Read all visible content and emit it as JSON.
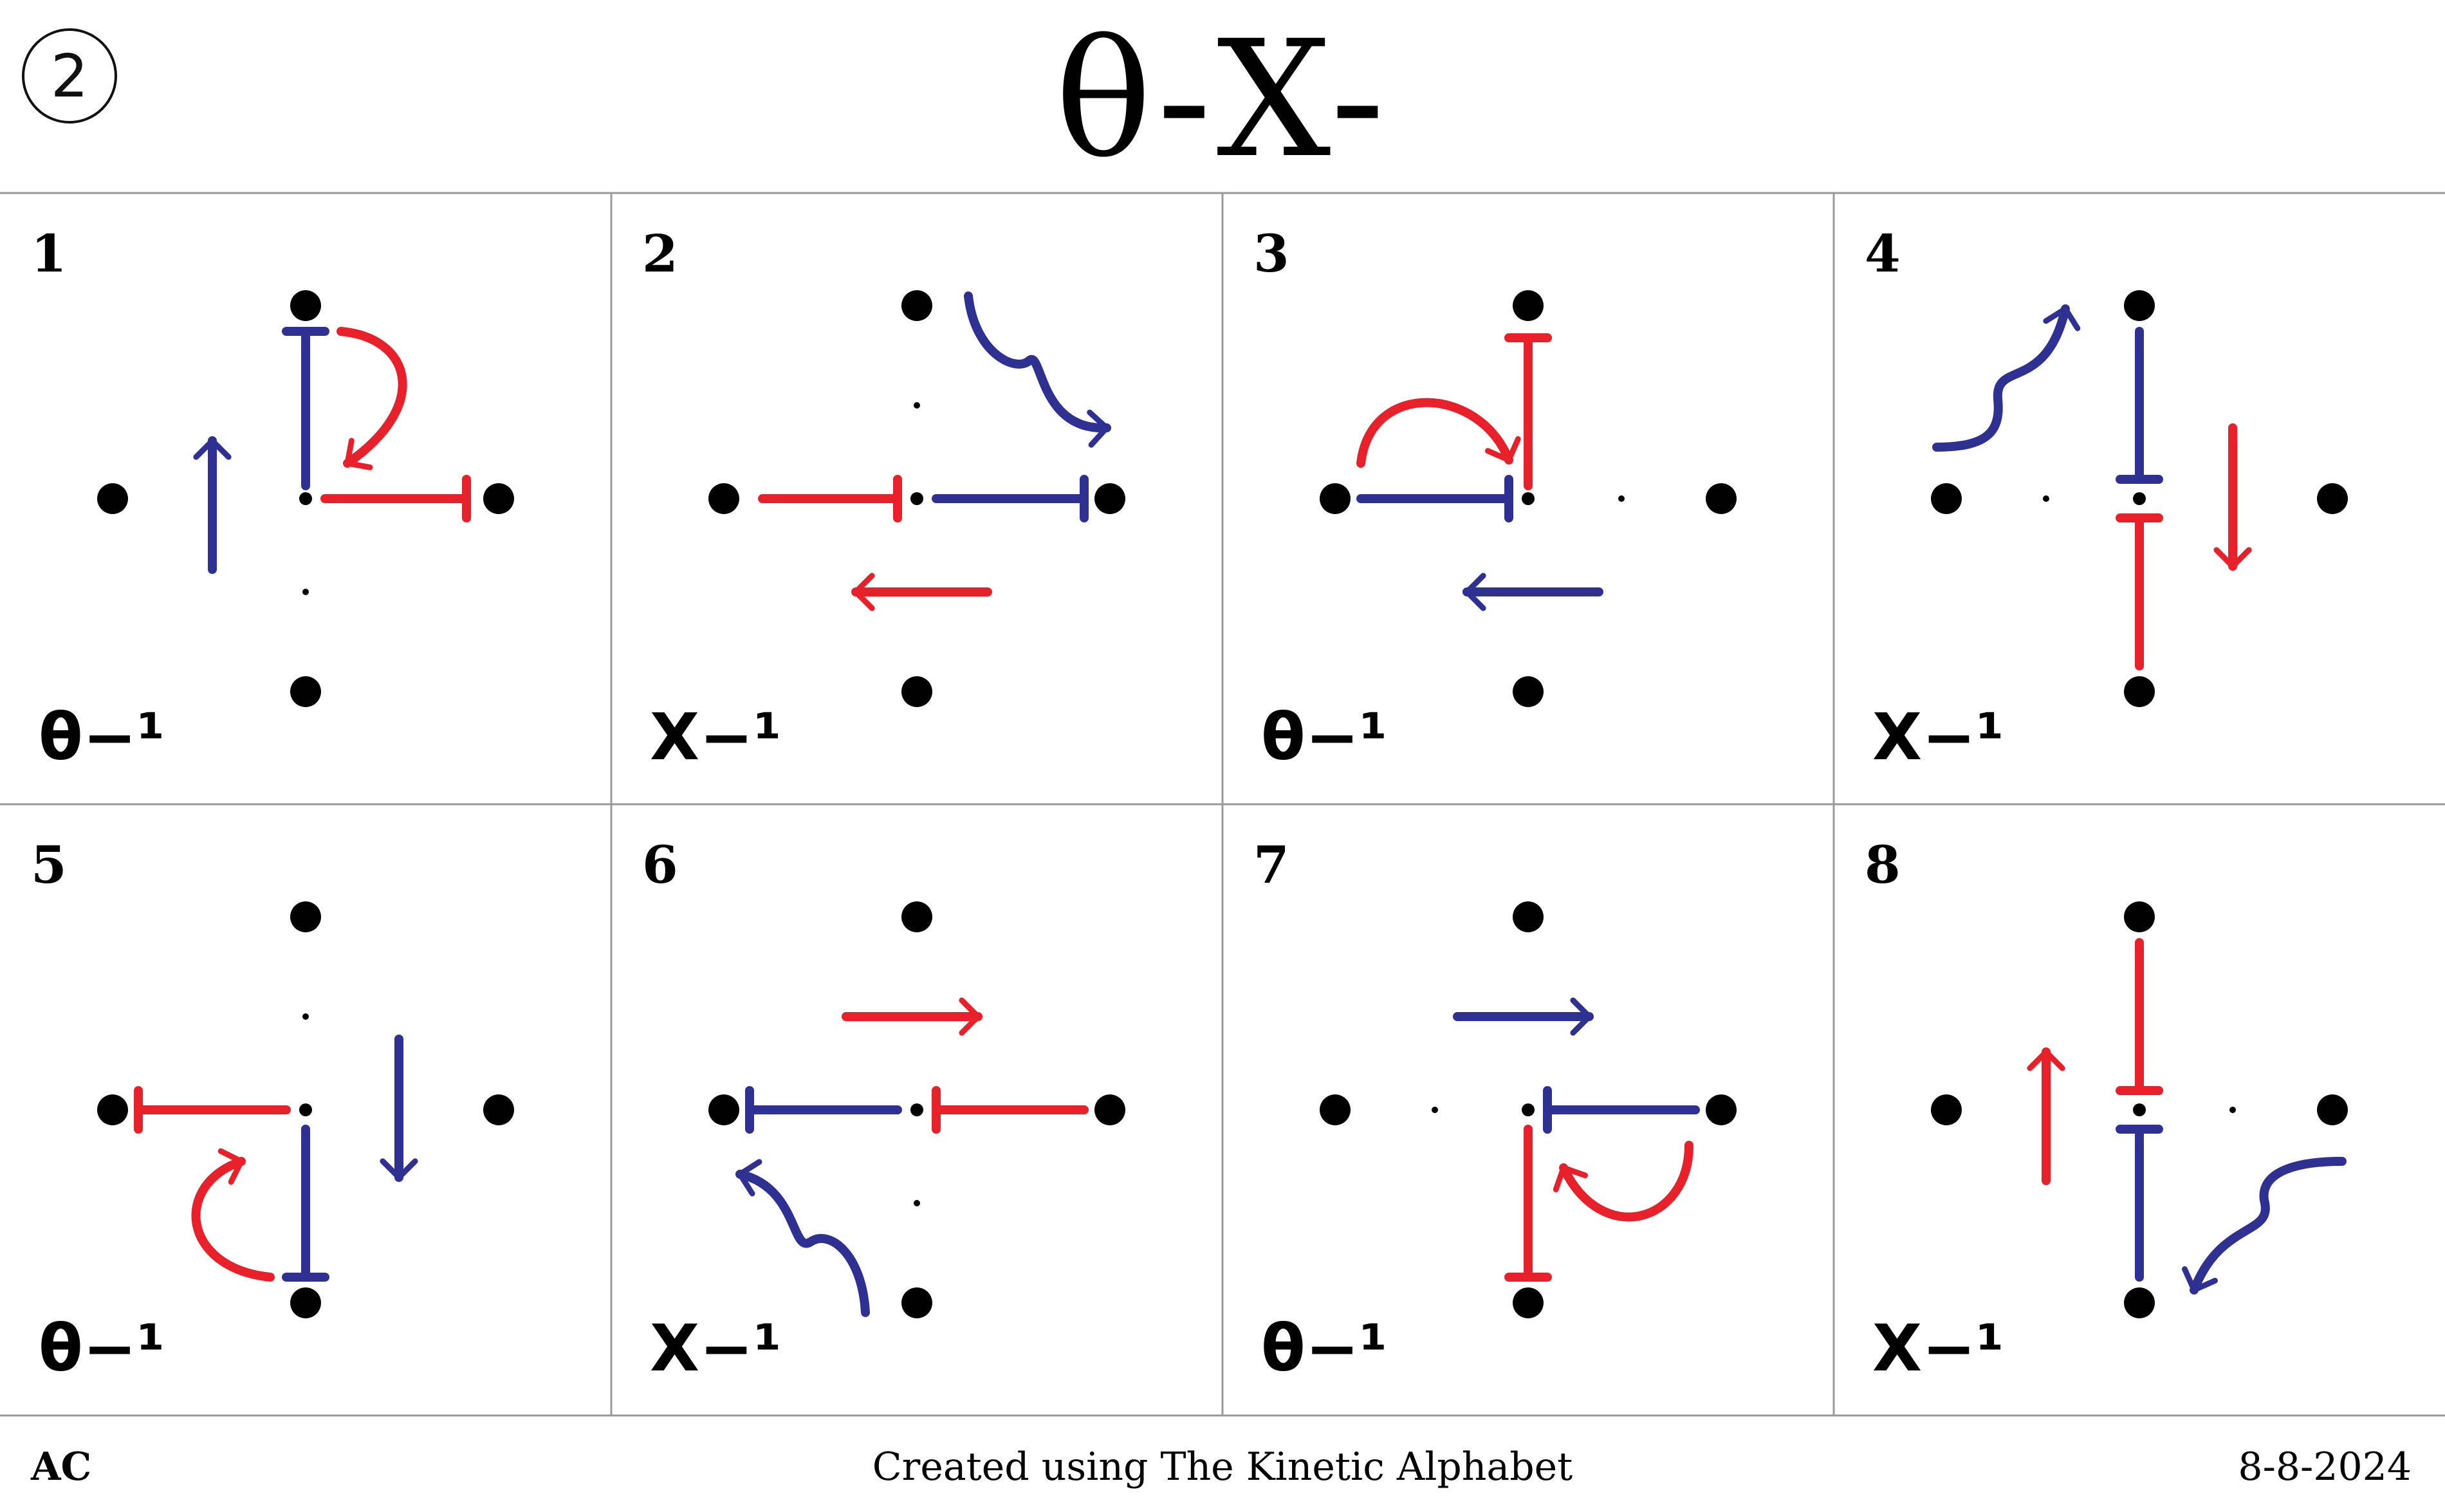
{
  "header": {
    "page_number": "2",
    "title": "θ-X-"
  },
  "colors": {
    "red": "#e8202a",
    "blue": "#2e3192",
    "black": "#000000",
    "grid": "#999999"
  },
  "panels": [
    {
      "number": "1",
      "label": "θ−¹"
    },
    {
      "number": "2",
      "label": "X−¹"
    },
    {
      "number": "3",
      "label": "θ−¹"
    },
    {
      "number": "4",
      "label": "X−¹"
    },
    {
      "number": "5",
      "label": "θ−¹"
    },
    {
      "number": "6",
      "label": "X−¹"
    },
    {
      "number": "7",
      "label": "θ−¹"
    },
    {
      "number": "8",
      "label": "X−¹"
    }
  ],
  "footer": {
    "author": "AC",
    "credit": "Created using The Kinetic Alphabet",
    "date": "8-8-2024"
  }
}
